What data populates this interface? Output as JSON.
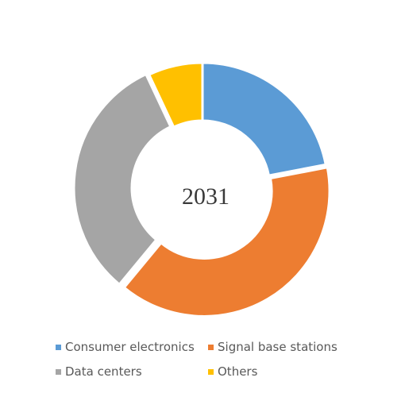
{
  "chart_data": {
    "type": "pie",
    "variant": "doughnut",
    "center_label": "2031",
    "start_angle_deg": 0,
    "direction": "clockwise",
    "slices": [
      {
        "label": "Consumer electronics",
        "value": 22,
        "color": "#5B9BD5"
      },
      {
        "label": "Signal base stations",
        "value": 39,
        "color": "#ED7D31"
      },
      {
        "label": "Data centers",
        "value": 32,
        "color": "#A5A5A5"
      },
      {
        "label": "Others",
        "value": 7,
        "color": "#FFC000"
      }
    ],
    "legend_position": "bottom",
    "exploded_slices": [
      "Signal base stations",
      "Data centers"
    ]
  }
}
